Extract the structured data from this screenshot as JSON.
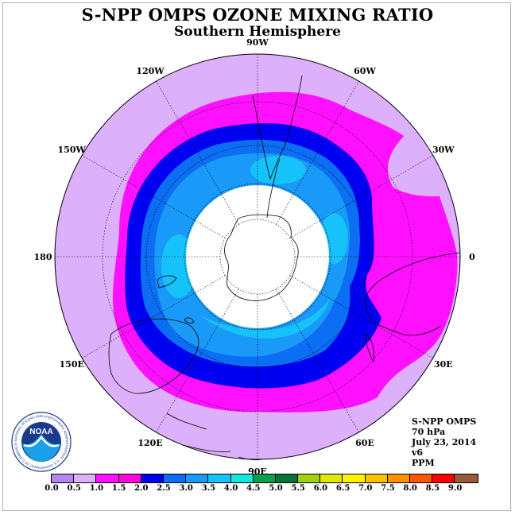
{
  "title": "S-NPP OMPS OZONE MIXING RATIO",
  "subtitle": "Southern Hemisphere",
  "longitudes": [
    {
      "label": "90W",
      "deg": -90
    },
    {
      "label": "60W",
      "deg": -60
    },
    {
      "label": "30W",
      "deg": -30
    },
    {
      "label": "0",
      "deg": 0
    },
    {
      "label": "30E",
      "deg": 30
    },
    {
      "label": "60E",
      "deg": 60
    },
    {
      "label": "90E",
      "deg": 90
    },
    {
      "label": "120E",
      "deg": 120
    },
    {
      "label": "150E",
      "deg": 150
    },
    {
      "label": "180",
      "deg": 180
    },
    {
      "label": "150W",
      "deg": -150
    },
    {
      "label": "120W",
      "deg": -120
    }
  ],
  "info": {
    "instrument": "S-NPP OMPS",
    "level": "70 hPa",
    "date": "July 23, 2014",
    "version": "v6",
    "units": "PPM"
  },
  "logo": {
    "text": "NOAA",
    "ring_text": "NATIONAL OCEANIC AND ATMOSPHERIC ADMINISTRATION · U.S. DEPARTMENT OF COMMERCE"
  },
  "colorbar": {
    "colors": [
      "#b585f5",
      "#dcb0fa",
      "#ff10ff",
      "#ff08d8",
      "#0000f0",
      "#0c6ef2",
      "#1a9af8",
      "#16c2fa",
      "#12e6de",
      "#0aa04a",
      "#08703a",
      "#a0d010",
      "#e0e808",
      "#fff200",
      "#ffc000",
      "#ff9000",
      "#ff5500",
      "#ff0000",
      "#9a5a3a"
    ],
    "ticks": [
      "0.0",
      "0.5",
      "1.0",
      "1.5",
      "2.0",
      "2.5",
      "3.0",
      "3.5",
      "4.0",
      "4.5",
      "5.0",
      "5.5",
      "6.0",
      "6.5",
      "7.0",
      "7.5",
      "8.0",
      "8.5",
      "9.0"
    ]
  },
  "chart_data": {
    "type": "heatmap",
    "title": "S-NPP OMPS OZONE MIXING RATIO",
    "subtitle": "Southern Hemisphere",
    "projection": "south polar stereographic",
    "units": "PPM",
    "pressure_level": "70 hPa",
    "date": "July 23, 2014",
    "color_scale": {
      "min": 0.0,
      "max": 9.0,
      "step": 0.5
    },
    "regions": [
      {
        "range": "0.5-1.0",
        "description": "outer ring / mid-latitudes"
      },
      {
        "range": "1.0-1.5",
        "description": "magenta collar band, extends to 0–30E"
      },
      {
        "range": "1.5-2.0",
        "description": "dark blue vortex edge"
      },
      {
        "range": "2.0-3.5",
        "description": "blue/cyan polar vortex core"
      },
      {
        "range": "no data",
        "description": "polar night cap (white)"
      }
    ]
  }
}
